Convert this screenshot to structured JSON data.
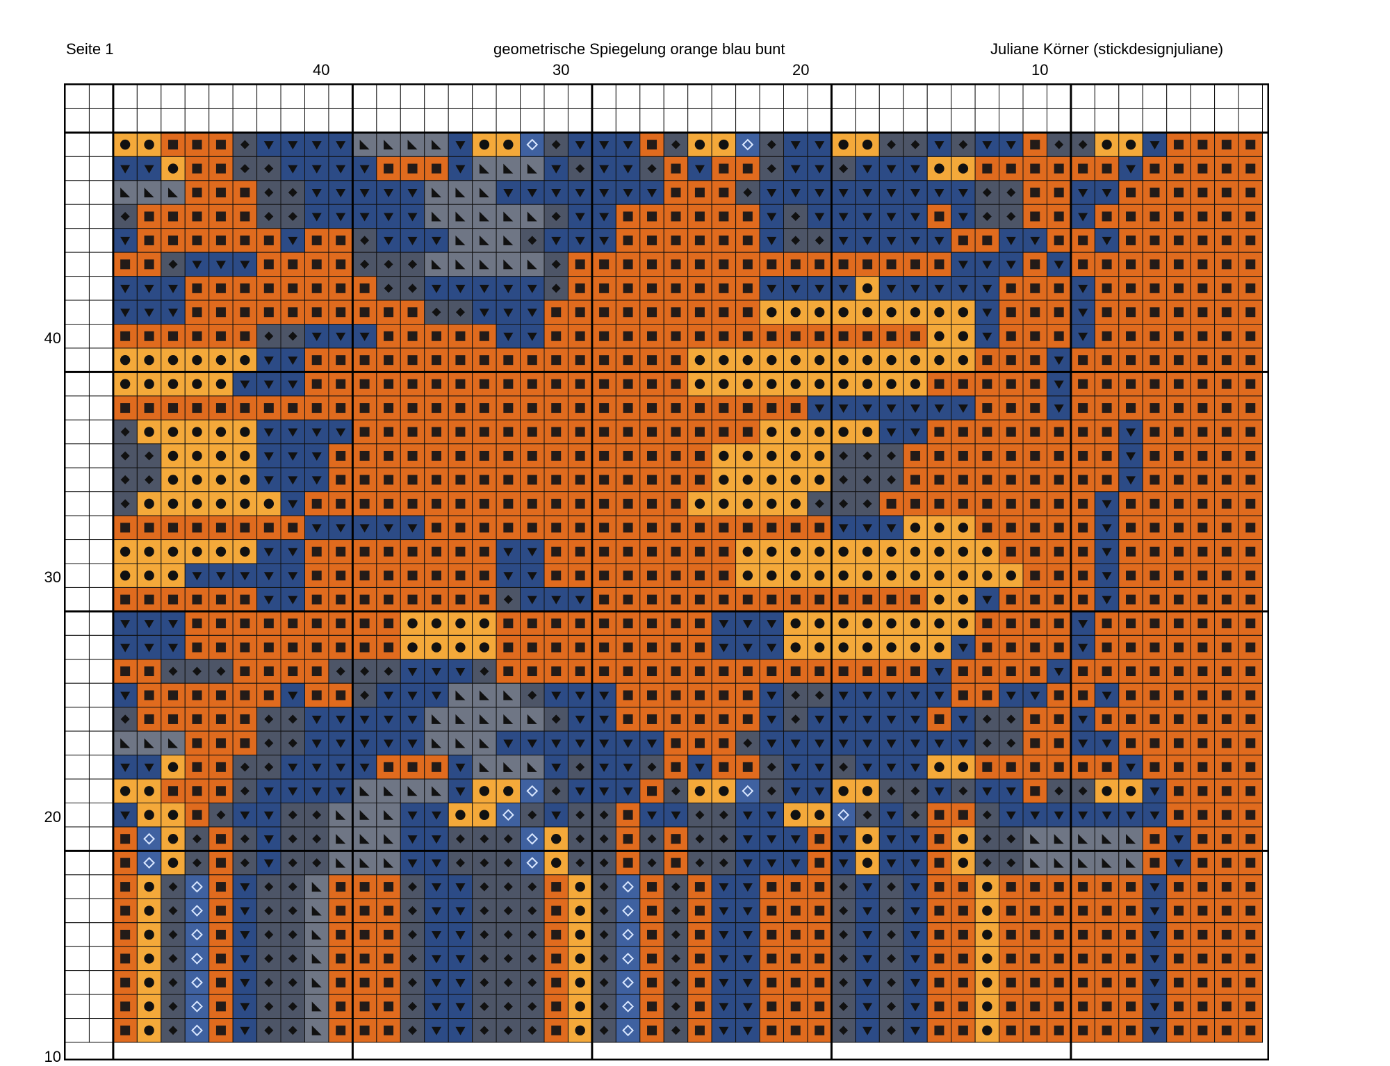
{
  "header": {
    "page_label": "Seite 1",
    "title": "geometrische Spiegelung orange blau bunt",
    "author": "Juliane Körner (stickdesignjuliane)"
  },
  "column_labels": [
    "40",
    "30",
    "20",
    "10"
  ],
  "row_labels": [
    "40",
    "30",
    "20",
    "10"
  ],
  "symbols": [
    {
      "key": "dark-square",
      "name": "dark-square-symbol",
      "fill": "#e06b1e",
      "mark": "square"
    },
    {
      "key": "circle",
      "name": "circle-symbol",
      "fill": "#f4a93a",
      "mark": "circle"
    },
    {
      "key": "diamond-blue",
      "name": "open-diamond-symbol",
      "fill": "#3f61a0",
      "mark": "open-diamond"
    },
    {
      "key": "diamond-gray",
      "name": "filled-diamond-symbol",
      "fill": "#4d5567",
      "mark": "filled-diamond"
    },
    {
      "key": "triangle",
      "name": "triangle-symbol",
      "fill": "#2c4b86",
      "mark": "down-triangle"
    },
    {
      "key": "corner",
      "name": "corner-triangle-symbol",
      "fill": "#6f7685",
      "mark": "corner"
    }
  ],
  "grid_colors": {
    "minor_line": "#111111",
    "major_line": "#000000",
    "empty_cell": "#ffffff"
  }
}
